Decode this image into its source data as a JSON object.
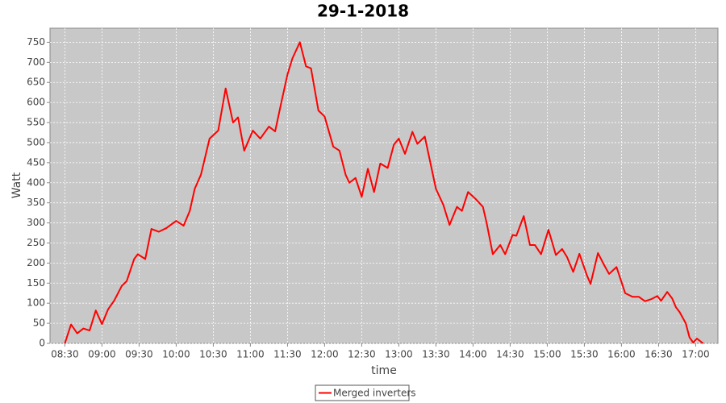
{
  "chart_data": {
    "type": "line",
    "title": "29-1-2018",
    "x_label": "time",
    "y_label": "Watt",
    "x": [
      510,
      515,
      520,
      525,
      530,
      535,
      540,
      545,
      550,
      556,
      560,
      566,
      569,
      575,
      580,
      586,
      592,
      600,
      606,
      611,
      615,
      620,
      627,
      634,
      640,
      646,
      650,
      655,
      662,
      668,
      675,
      680,
      685,
      690,
      694,
      700,
      705,
      709,
      715,
      720,
      727,
      732,
      737,
      740,
      745,
      750,
      755,
      760,
      765,
      771,
      776,
      780,
      785,
      791,
      795,
      801,
      810,
      816,
      821,
      827,
      831,
      836,
      842,
      848,
      851,
      856,
      862,
      866,
      872,
      875,
      881,
      886,
      890,
      895,
      901,
      907,
      912,
      916,
      921,
      926,
      932,
      935,
      941,
      946,
      950,
      956,
      963,
      969,
      974,
      979,
      984,
      989,
      992,
      997,
      1001,
      1004,
      1007,
      1012,
      1015,
      1018,
      1021,
      1026
    ],
    "series": [
      {
        "name": "Merged inverters",
        "color": "#ff0000",
        "values": [
          0,
          47,
          25,
          37,
          32,
          82,
          48,
          85,
          107,
          143,
          155,
          210,
          222,
          210,
          285,
          278,
          287,
          305,
          293,
          330,
          385,
          420,
          510,
          530,
          635,
          550,
          563,
          480,
          530,
          510,
          540,
          528,
          600,
          670,
          710,
          750,
          690,
          685,
          580,
          565,
          490,
          480,
          420,
          400,
          412,
          365,
          435,
          377,
          448,
          437,
          495,
          510,
          472,
          527,
          497,
          515,
          385,
          345,
          295,
          340,
          330,
          377,
          360,
          340,
          300,
          222,
          245,
          222,
          270,
          268,
          317,
          245,
          245,
          222,
          283,
          220,
          235,
          215,
          178,
          223,
          170,
          148,
          225,
          195,
          173,
          190,
          125,
          116,
          116,
          105,
          110,
          118,
          106,
          128,
          112,
          90,
          78,
          50,
          15,
          2,
          12,
          0
        ]
      }
    ],
    "xlim": [
      498,
      1038
    ],
    "ylim": [
      0,
      785
    ],
    "xticks": [
      {
        "value": 510,
        "label": "08:30"
      },
      {
        "value": 540,
        "label": "09:00"
      },
      {
        "value": 570,
        "label": "09:30"
      },
      {
        "value": 600,
        "label": "10:00"
      },
      {
        "value": 630,
        "label": "10:30"
      },
      {
        "value": 660,
        "label": "11:00"
      },
      {
        "value": 690,
        "label": "11:30"
      },
      {
        "value": 720,
        "label": "12:00"
      },
      {
        "value": 750,
        "label": "12:30"
      },
      {
        "value": 780,
        "label": "13:00"
      },
      {
        "value": 810,
        "label": "13:30"
      },
      {
        "value": 840,
        "label": "14:00"
      },
      {
        "value": 870,
        "label": "14:30"
      },
      {
        "value": 900,
        "label": "15:00"
      },
      {
        "value": 930,
        "label": "15:30"
      },
      {
        "value": 960,
        "label": "16:00"
      },
      {
        "value": 990,
        "label": "16:30"
      },
      {
        "value": 1020,
        "label": "17:00"
      }
    ],
    "yticks": [
      0,
      50,
      100,
      150,
      200,
      250,
      300,
      350,
      400,
      450,
      500,
      550,
      600,
      650,
      700,
      750
    ],
    "grid": true,
    "legend": "bottom"
  }
}
